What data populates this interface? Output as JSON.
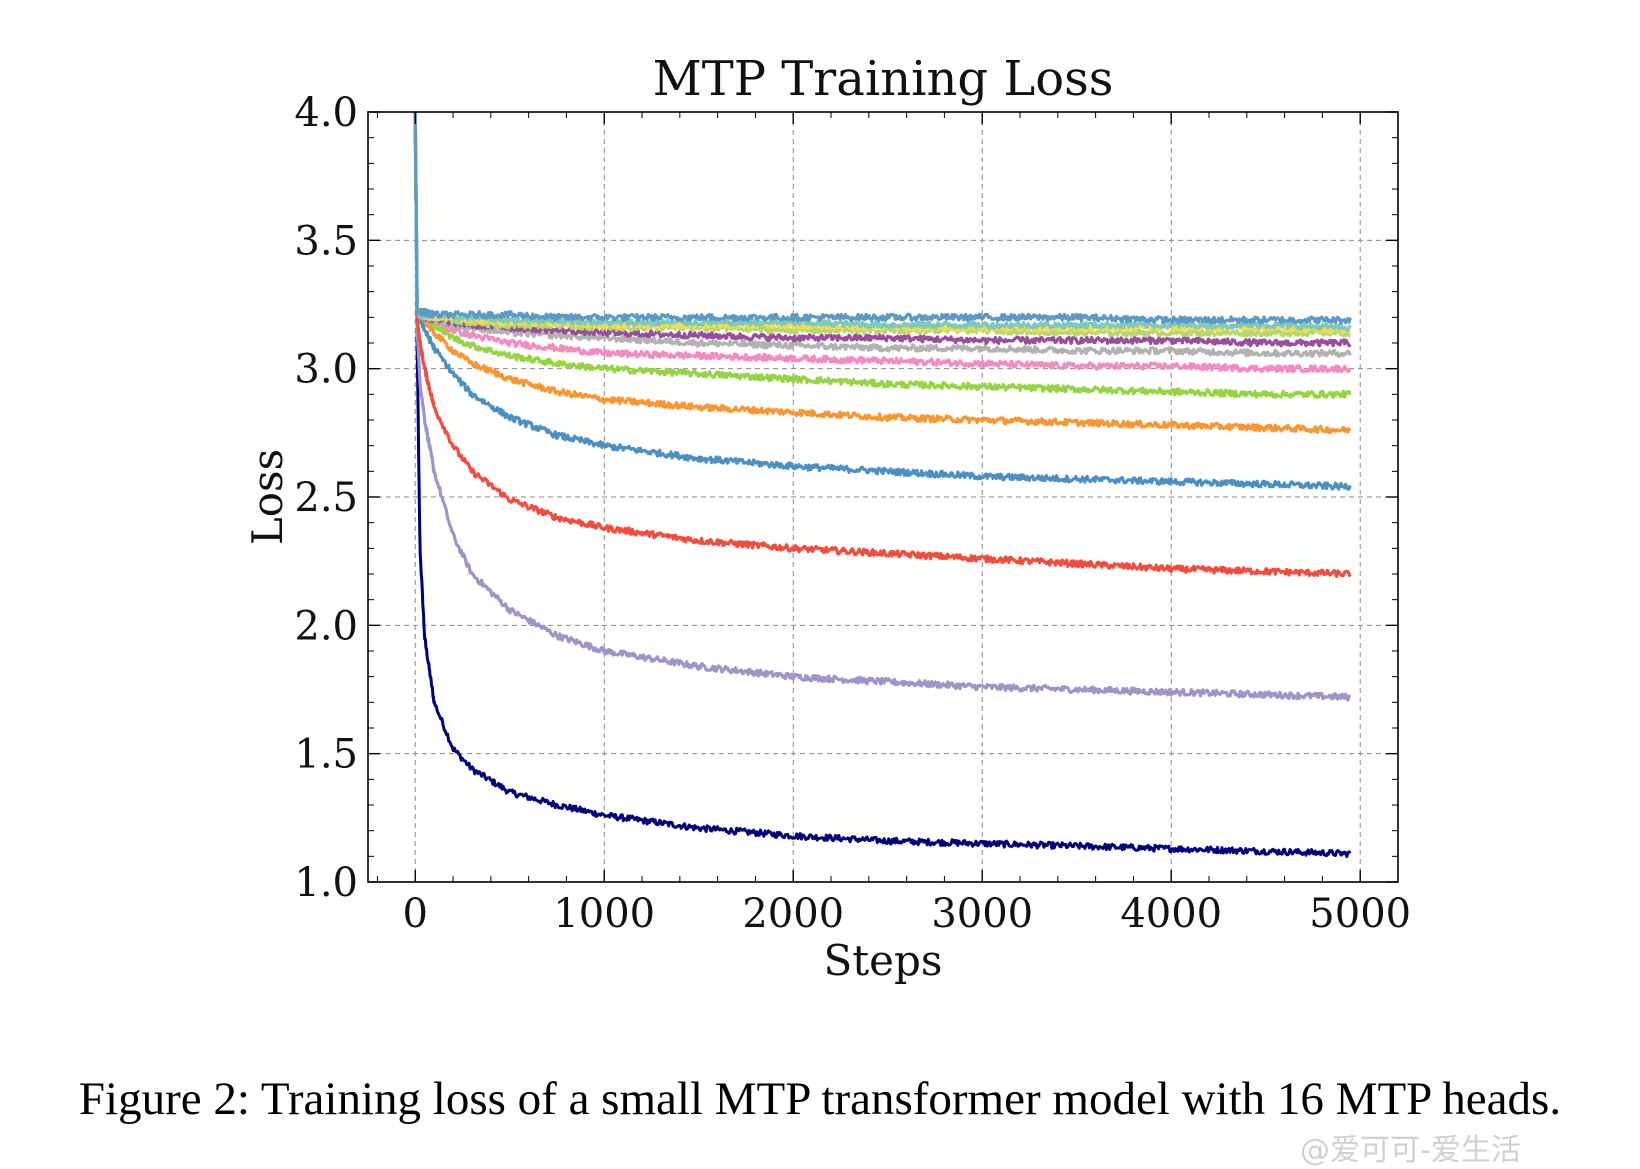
{
  "chart_data": {
    "type": "line",
    "title": "MTP Training Loss",
    "xlabel": "Steps",
    "ylabel": "Loss",
    "xlim": [
      -250,
      5200
    ],
    "ylim": [
      1.0,
      4.0
    ],
    "xticks": [
      "0",
      "1000",
      "2000",
      "3000",
      "4000",
      "5000"
    ],
    "yticks": [
      "1.0",
      "1.5",
      "2.0",
      "2.5",
      "3.0",
      "3.5",
      "4.0"
    ],
    "grid": true,
    "legend": "none",
    "x": [
      0,
      10,
      25,
      50,
      100,
      200,
      300,
      500,
      750,
      1000,
      1500,
      2000,
      2500,
      3000,
      3500,
      4000,
      4500,
      4950
    ],
    "series": [
      {
        "color": "#00007f",
        "values": [
          4.0,
          3.1,
          2.3,
          1.95,
          1.7,
          1.52,
          1.44,
          1.35,
          1.3,
          1.26,
          1.21,
          1.18,
          1.16,
          1.15,
          1.14,
          1.13,
          1.12,
          1.11
        ]
      },
      {
        "color": "#9d95c9",
        "values": [
          4.0,
          3.15,
          2.95,
          2.8,
          2.6,
          2.35,
          2.2,
          2.06,
          1.96,
          1.9,
          1.84,
          1.8,
          1.78,
          1.76,
          1.75,
          1.74,
          1.73,
          1.72
        ]
      },
      {
        "color": "#f44b3c",
        "values": [
          4.0,
          3.2,
          3.1,
          3.0,
          2.85,
          2.7,
          2.6,
          2.49,
          2.42,
          2.38,
          2.33,
          2.3,
          2.28,
          2.26,
          2.24,
          2.22,
          2.21,
          2.2
        ]
      },
      {
        "color": "#4a90c4",
        "values": [
          4.0,
          3.22,
          3.2,
          3.15,
          3.08,
          2.98,
          2.9,
          2.81,
          2.74,
          2.7,
          2.65,
          2.62,
          2.6,
          2.58,
          2.57,
          2.56,
          2.55,
          2.54
        ]
      },
      {
        "color": "#fb962f",
        "values": [
          4.0,
          3.22,
          3.21,
          3.19,
          3.14,
          3.07,
          3.02,
          2.96,
          2.91,
          2.88,
          2.85,
          2.83,
          2.81,
          2.8,
          2.79,
          2.78,
          2.77,
          2.76
        ]
      },
      {
        "color": "#96d443",
        "values": [
          4.0,
          3.22,
          3.21,
          3.2,
          3.17,
          3.12,
          3.09,
          3.05,
          3.02,
          3.0,
          2.98,
          2.96,
          2.94,
          2.93,
          2.92,
          2.91,
          2.9,
          2.9
        ]
      },
      {
        "color": "#f48ac2",
        "values": [
          4.0,
          3.22,
          3.21,
          3.2,
          3.19,
          3.15,
          3.13,
          3.1,
          3.08,
          3.06,
          3.05,
          3.04,
          3.03,
          3.02,
          3.01,
          3.01,
          3.0,
          3.0
        ]
      },
      {
        "color": "#b2b2b2",
        "values": [
          4.0,
          3.22,
          3.21,
          3.2,
          3.19,
          3.17,
          3.16,
          3.14,
          3.13,
          3.12,
          3.1,
          3.09,
          3.08,
          3.08,
          3.07,
          3.07,
          3.06,
          3.06
        ]
      },
      {
        "color": "#9a4c9e",
        "values": [
          4.0,
          3.22,
          3.21,
          3.2,
          3.19,
          3.18,
          3.17,
          3.16,
          3.15,
          3.14,
          3.13,
          3.12,
          3.12,
          3.11,
          3.11,
          3.11,
          3.1,
          3.1
        ]
      },
      {
        "color": "#b5d86a",
        "values": [
          4.0,
          3.22,
          3.21,
          3.2,
          3.2,
          3.19,
          3.18,
          3.17,
          3.17,
          3.16,
          3.16,
          3.15,
          3.15,
          3.15,
          3.14,
          3.14,
          3.14,
          3.14
        ]
      },
      {
        "color": "#f2dc4e",
        "values": [
          4.0,
          3.22,
          3.21,
          3.21,
          3.2,
          3.2,
          3.19,
          3.18,
          3.18,
          3.17,
          3.17,
          3.17,
          3.16,
          3.16,
          3.16,
          3.16,
          3.16,
          3.15
        ]
      },
      {
        "color": "#7fc8be",
        "values": [
          4.0,
          3.22,
          3.21,
          3.21,
          3.21,
          3.2,
          3.2,
          3.19,
          3.19,
          3.18,
          3.18,
          3.18,
          3.17,
          3.17,
          3.17,
          3.17,
          3.17,
          3.16
        ]
      },
      {
        "color": "#5a9ac8",
        "values": [
          4.0,
          3.22,
          3.22,
          3.22,
          3.21,
          3.21,
          3.21,
          3.21,
          3.2,
          3.2,
          3.2,
          3.2,
          3.2,
          3.2,
          3.2,
          3.19,
          3.19,
          3.19
        ]
      }
    ]
  },
  "caption": "Figure 2: Training loss of a small MTP transformer model with 16 MTP heads.",
  "watermark": "@爱可可-爱生活"
}
